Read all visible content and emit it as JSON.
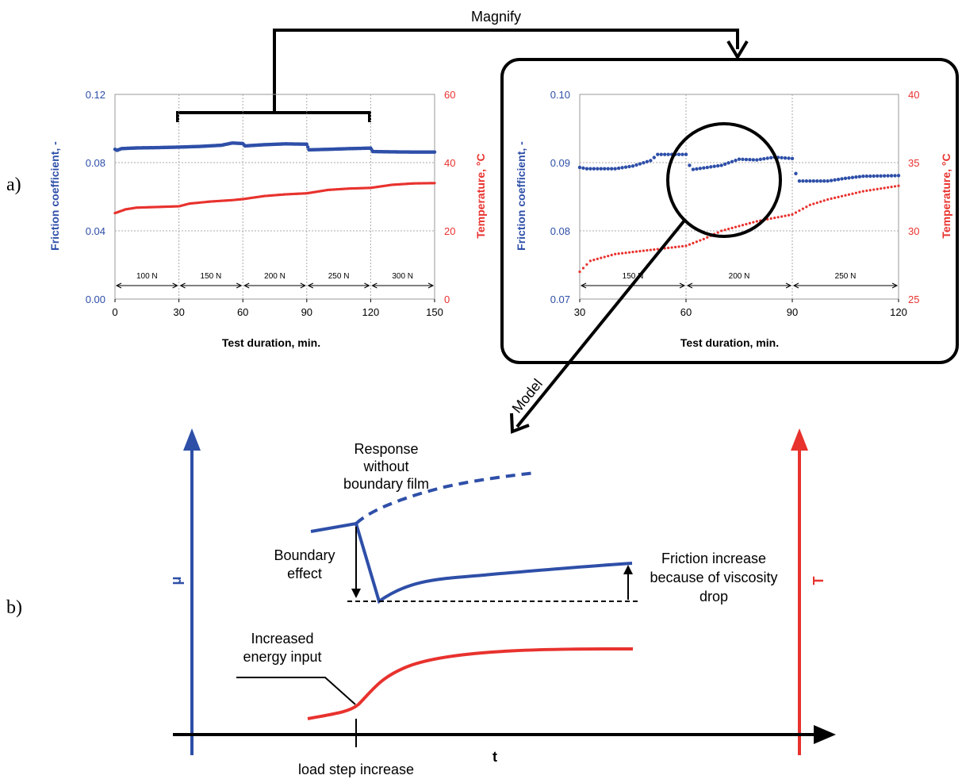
{
  "labels": {
    "panel_a": "a)",
    "panel_b": "b)",
    "magnify": "Magnify",
    "model": "Model"
  },
  "chart_data": [
    {
      "type": "scatter",
      "xlabel": "Test duration, min.",
      "ylabel_left": "Friction coefficient, -",
      "ylabel_right": "Temperature, °C",
      "xlim": [
        0,
        150
      ],
      "ylim_left": [
        0,
        0.12
      ],
      "ylim_right": [
        0,
        60
      ],
      "x_ticks": [
        "0",
        "30",
        "60",
        "90",
        "120",
        "150"
      ],
      "y_left_ticks": [
        "0.00",
        "0.04",
        "0.08",
        "0.12"
      ],
      "y_right_ticks": [
        "0",
        "20",
        "40",
        "60"
      ],
      "grid": true,
      "load_steps": [
        {
          "label": "100 N",
          "from": 0,
          "to": 30
        },
        {
          "label": "150 N",
          "from": 30,
          "to": 60
        },
        {
          "label": "200 N",
          "from": 60,
          "to": 90
        },
        {
          "label": "250 N",
          "from": 90,
          "to": 120
        },
        {
          "label": "300 N",
          "from": 120,
          "to": 150
        }
      ],
      "series": [
        {
          "axis": "left",
          "color": "#2e4fa8",
          "points": [
            [
              0,
              0.0878
            ],
            [
              1,
              0.0872
            ],
            [
              3,
              0.0882
            ],
            [
              10,
              0.0886
            ],
            [
              20,
              0.0888
            ],
            [
              30,
              0.0891
            ],
            [
              40,
              0.0895
            ],
            [
              50,
              0.0902
            ],
            [
              55,
              0.0915
            ],
            [
              60,
              0.0912
            ],
            [
              61,
              0.0898
            ],
            [
              70,
              0.0905
            ],
            [
              80,
              0.091
            ],
            [
              90,
              0.0908
            ],
            [
              91,
              0.0875
            ],
            [
              100,
              0.0878
            ],
            [
              110,
              0.0882
            ],
            [
              120,
              0.0885
            ],
            [
              121,
              0.0865
            ],
            [
              130,
              0.0863
            ],
            [
              140,
              0.0862
            ],
            [
              150,
              0.0862
            ]
          ]
        },
        {
          "axis": "right",
          "color": "#e8322e",
          "points": [
            [
              0,
              25.2
            ],
            [
              5,
              26.3
            ],
            [
              10,
              26.8
            ],
            [
              20,
              27.0
            ],
            [
              30,
              27.2
            ],
            [
              35,
              28.0
            ],
            [
              45,
              28.6
            ],
            [
              55,
              29.0
            ],
            [
              60,
              29.3
            ],
            [
              70,
              30.2
            ],
            [
              80,
              30.7
            ],
            [
              90,
              31.0
            ],
            [
              100,
              32.0
            ],
            [
              110,
              32.4
            ],
            [
              120,
              32.6
            ],
            [
              130,
              33.5
            ],
            [
              140,
              33.9
            ],
            [
              150,
              34.0
            ]
          ]
        }
      ]
    },
    {
      "type": "scatter",
      "xlabel": "Test duration, min.",
      "ylabel_left": "Friction coefficient, -",
      "ylabel_right": "Temperature, °C",
      "xlim": [
        30,
        120
      ],
      "ylim_left": [
        0.07,
        0.1
      ],
      "ylim_right": [
        25,
        40
      ],
      "x_ticks": [
        "30",
        "60",
        "90",
        "120"
      ],
      "y_left_ticks": [
        "0.07",
        "0.08",
        "0.09",
        "0.10"
      ],
      "y_right_ticks": [
        "25",
        "30",
        "35",
        "40"
      ],
      "grid": true,
      "load_steps": [
        {
          "label": "150 N",
          "from": 30,
          "to": 60
        },
        {
          "label": "200 N",
          "from": 60,
          "to": 90
        },
        {
          "label": "250 N",
          "from": 90,
          "to": 120
        }
      ],
      "series": [
        {
          "axis": "left",
          "color": "#2e4fa8",
          "points": [
            [
              30,
              0.0893
            ],
            [
              32,
              0.0891
            ],
            [
              40,
              0.0891
            ],
            [
              45,
              0.0895
            ],
            [
              50,
              0.0903
            ],
            [
              52,
              0.0912
            ],
            [
              60,
              0.0912
            ],
            [
              61,
              0.0896
            ],
            [
              62,
              0.089
            ],
            [
              70,
              0.0896
            ],
            [
              75,
              0.0905
            ],
            [
              80,
              0.0904
            ],
            [
              85,
              0.0908
            ],
            [
              90,
              0.0906
            ],
            [
              91,
              0.0884
            ],
            [
              92,
              0.0873
            ],
            [
              100,
              0.0873
            ],
            [
              105,
              0.0877
            ],
            [
              110,
              0.088
            ],
            [
              120,
              0.0881
            ]
          ]
        },
        {
          "axis": "right",
          "color": "#e8322e",
          "points": [
            [
              30,
              27.0
            ],
            [
              33,
              27.8
            ],
            [
              40,
              28.3
            ],
            [
              50,
              28.6
            ],
            [
              60,
              28.9
            ],
            [
              65,
              29.4
            ],
            [
              70,
              30.0
            ],
            [
              80,
              30.7
            ],
            [
              90,
              31.2
            ],
            [
              95,
              31.9
            ],
            [
              100,
              32.3
            ],
            [
              110,
              32.9
            ],
            [
              120,
              33.3
            ]
          ]
        }
      ]
    }
  ],
  "model": {
    "y_left_label": "μ",
    "y_right_label": "T",
    "x_label": "t",
    "annotations": {
      "response_line1": "Response",
      "response_line2": "without",
      "response_line3": "boundary film",
      "boundary_line1": "Boundary",
      "boundary_line2": "effect",
      "friction_line1": "Friction increase",
      "friction_line2": "because of viscosity",
      "friction_line3": "drop",
      "energy_line1": "Increased",
      "energy_line2": "energy input",
      "load_step": "load step increase"
    },
    "colors": {
      "friction": "#2e4fa8",
      "temperature": "#e8322e",
      "axis": "#000000"
    }
  }
}
